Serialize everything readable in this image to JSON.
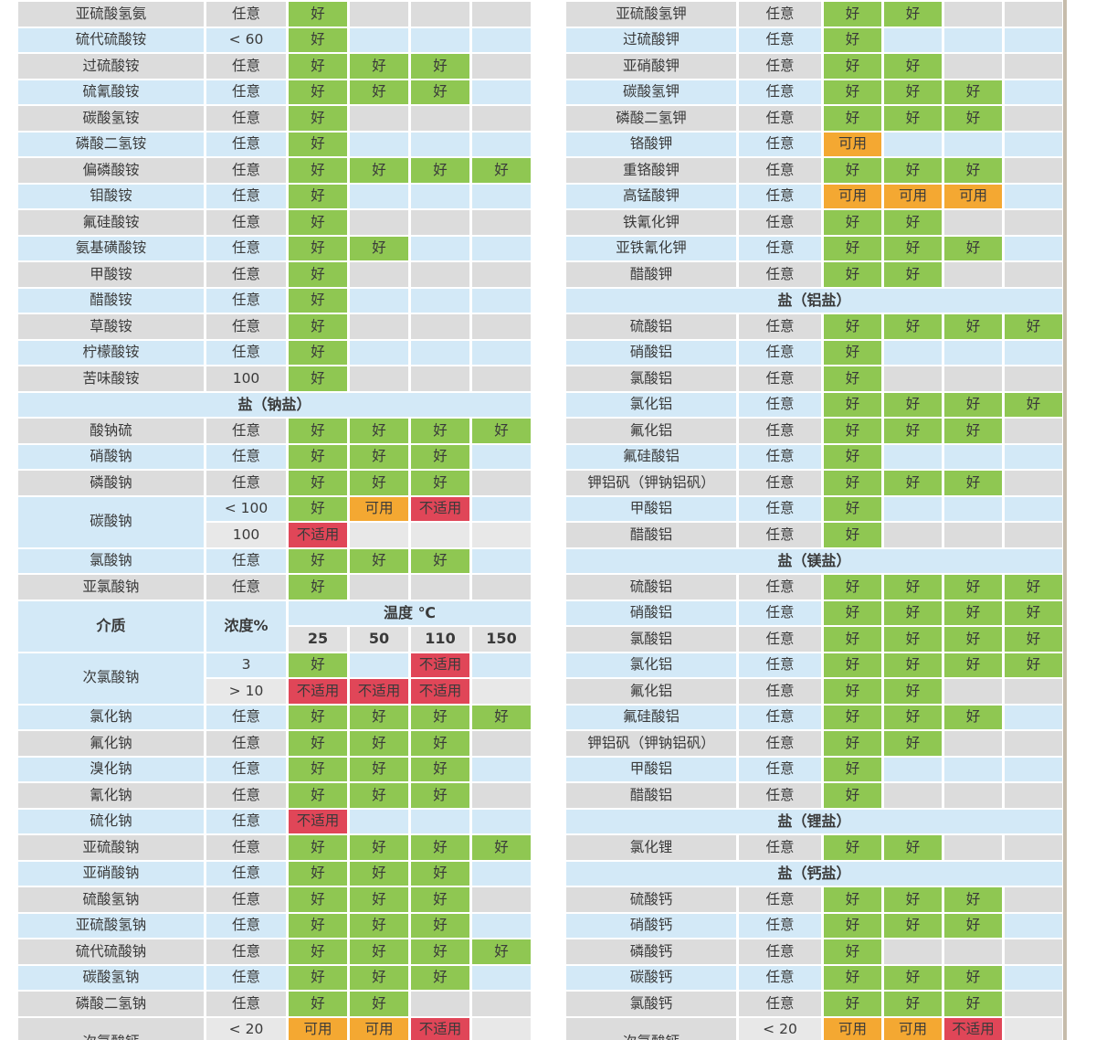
{
  "colors": {
    "good": "#8fc752",
    "usable": "#f4a832",
    "unsuitable": "#e04658",
    "row_gray": "#dcdcdc",
    "row_blue": "#d3e9f7",
    "row_light": "#e8e8e8",
    "header_num_bg": "#e0e0e0",
    "text": "#3a3a3a",
    "edge_line": "#c6bcab"
  },
  "status_labels": {
    "g": "好",
    "u": "可用",
    "x": "不适用"
  },
  "columns_header": {
    "medium": "介质",
    "concentration": "浓度%",
    "temperature": "温度 ℃",
    "temps": [
      "25",
      "50",
      "110",
      "150"
    ]
  },
  "tables": [
    {
      "id": "left",
      "rows": [
        {
          "t": "d",
          "s": "gray",
          "n": "亚硫酸氢氨",
          "c": "任意",
          "v": [
            "g",
            null,
            null,
            null
          ]
        },
        {
          "t": "d",
          "s": "blue",
          "n": "硫代硫酸铵",
          "c": "< 60",
          "v": [
            "g",
            null,
            null,
            null
          ]
        },
        {
          "t": "d",
          "s": "gray",
          "n": "过硫酸铵",
          "c": "任意",
          "v": [
            "g",
            "g",
            "g",
            null
          ]
        },
        {
          "t": "d",
          "s": "blue",
          "n": "硫氰酸铵",
          "c": "任意",
          "v": [
            "g",
            "g",
            "g",
            null
          ]
        },
        {
          "t": "d",
          "s": "gray",
          "n": "碳酸氢铵",
          "c": "任意",
          "v": [
            "g",
            null,
            null,
            null
          ]
        },
        {
          "t": "d",
          "s": "blue",
          "n": "磷酸二氢铵",
          "c": "任意",
          "v": [
            "g",
            null,
            null,
            null
          ]
        },
        {
          "t": "d",
          "s": "gray",
          "n": "偏磷酸铵",
          "c": "任意",
          "v": [
            "g",
            "g",
            "g",
            "g"
          ]
        },
        {
          "t": "d",
          "s": "blue",
          "n": "钼酸铵",
          "c": "任意",
          "v": [
            "g",
            null,
            null,
            null
          ]
        },
        {
          "t": "d",
          "s": "gray",
          "n": "氟硅酸铵",
          "c": "任意",
          "v": [
            "g",
            null,
            null,
            null
          ]
        },
        {
          "t": "d",
          "s": "blue",
          "n": "氨基磺酸铵",
          "c": "任意",
          "v": [
            "g",
            "g",
            null,
            null
          ]
        },
        {
          "t": "d",
          "s": "gray",
          "n": "甲酸铵",
          "c": "任意",
          "v": [
            "g",
            null,
            null,
            null
          ]
        },
        {
          "t": "d",
          "s": "blue",
          "n": "醋酸铵",
          "c": "任意",
          "v": [
            "g",
            null,
            null,
            null
          ]
        },
        {
          "t": "d",
          "s": "gray",
          "n": "草酸铵",
          "c": "任意",
          "v": [
            "g",
            null,
            null,
            null
          ]
        },
        {
          "t": "d",
          "s": "blue",
          "n": "柠檬酸铵",
          "c": "任意",
          "v": [
            "g",
            null,
            null,
            null
          ]
        },
        {
          "t": "d",
          "s": "gray",
          "n": "苦味酸铵",
          "c": "100",
          "v": [
            "g",
            null,
            null,
            null
          ]
        },
        {
          "t": "s",
          "label": "盐（钠盐）"
        },
        {
          "t": "d",
          "s": "gray",
          "n": "酸钠硫",
          "c": "任意",
          "v": [
            "g",
            "g",
            "g",
            "g"
          ]
        },
        {
          "t": "d",
          "s": "blue",
          "n": "硝酸钠",
          "c": "任意",
          "v": [
            "g",
            "g",
            "g",
            null
          ]
        },
        {
          "t": "d",
          "s": "gray",
          "n": "磷酸钠",
          "c": "任意",
          "v": [
            "g",
            "g",
            "g",
            null
          ]
        },
        {
          "t": "m",
          "s": "blue",
          "n": "碳酸钠",
          "sub": [
            {
              "s": "blue",
              "c": "< 100",
              "v": [
                "g",
                "u",
                "x",
                null
              ]
            },
            {
              "s": "light",
              "c": "100",
              "v": [
                "x",
                null,
                null,
                null
              ]
            }
          ]
        },
        {
          "t": "d",
          "s": "blue",
          "n": "氯酸钠",
          "c": "任意",
          "v": [
            "g",
            "g",
            "g",
            null
          ]
        },
        {
          "t": "d",
          "s": "gray",
          "n": "亚氯酸钠",
          "c": "任意",
          "v": [
            "g",
            null,
            null,
            null
          ]
        },
        {
          "t": "h"
        },
        {
          "t": "m",
          "s": "blue",
          "n": "次氯酸钠",
          "sub": [
            {
              "s": "blue",
              "c": "3",
              "v": [
                "g",
                null,
                "x",
                null
              ]
            },
            {
              "s": "light",
              "c": "> 10",
              "v": [
                "x",
                "x",
                "x",
                null
              ]
            }
          ]
        },
        {
          "t": "d",
          "s": "blue",
          "n": "氯化钠",
          "c": "任意",
          "v": [
            "g",
            "g",
            "g",
            "g"
          ]
        },
        {
          "t": "d",
          "s": "gray",
          "n": "氟化钠",
          "c": "任意",
          "v": [
            "g",
            "g",
            "g",
            null
          ]
        },
        {
          "t": "d",
          "s": "blue",
          "n": "溴化钠",
          "c": "任意",
          "v": [
            "g",
            "g",
            "g",
            null
          ]
        },
        {
          "t": "d",
          "s": "gray",
          "n": "氰化钠",
          "c": "任意",
          "v": [
            "g",
            "g",
            "g",
            null
          ]
        },
        {
          "t": "d",
          "s": "blue",
          "n": "硫化钠",
          "c": "任意",
          "v": [
            "x",
            null,
            null,
            null
          ]
        },
        {
          "t": "d",
          "s": "gray",
          "n": "亚硫酸钠",
          "c": "任意",
          "v": [
            "g",
            "g",
            "g",
            "g"
          ]
        },
        {
          "t": "d",
          "s": "blue",
          "n": "亚硝酸钠",
          "c": "任意",
          "v": [
            "g",
            "g",
            "g",
            null
          ]
        },
        {
          "t": "d",
          "s": "gray",
          "n": "硫酸氢钠",
          "c": "任意",
          "v": [
            "g",
            "g",
            "g",
            null
          ]
        },
        {
          "t": "d",
          "s": "blue",
          "n": "亚硫酸氢钠",
          "c": "任意",
          "v": [
            "g",
            "g",
            "g",
            null
          ]
        },
        {
          "t": "d",
          "s": "gray",
          "n": "硫代硫酸钠",
          "c": "任意",
          "v": [
            "g",
            "g",
            "g",
            "g"
          ]
        },
        {
          "t": "d",
          "s": "blue",
          "n": "碳酸氢钠",
          "c": "任意",
          "v": [
            "g",
            "g",
            "g",
            null
          ]
        },
        {
          "t": "d",
          "s": "gray",
          "n": "磷酸二氢钠",
          "c": "任意",
          "v": [
            "g",
            "g",
            null,
            null
          ]
        },
        {
          "t": "m",
          "s": "gray",
          "n": "次氯酸钙",
          "sub": [
            {
              "s": "light",
              "c": "< 20",
              "v": [
                "u",
                "u",
                "x",
                null
              ]
            },
            {
              "s": "light",
              "c": "",
              "v": [
                null,
                null,
                null,
                null
              ]
            }
          ]
        }
      ]
    },
    {
      "id": "right",
      "rows": [
        {
          "t": "d",
          "s": "gray",
          "n": "亚硫酸氢钾",
          "c": "任意",
          "v": [
            "g",
            "g",
            null,
            null
          ]
        },
        {
          "t": "d",
          "s": "blue",
          "n": "过硫酸钾",
          "c": "任意",
          "v": [
            "g",
            null,
            null,
            null
          ]
        },
        {
          "t": "d",
          "s": "gray",
          "n": "亚硝酸钾",
          "c": "任意",
          "v": [
            "g",
            "g",
            null,
            null
          ]
        },
        {
          "t": "d",
          "s": "blue",
          "n": "碳酸氢钾",
          "c": "任意",
          "v": [
            "g",
            "g",
            "g",
            null
          ]
        },
        {
          "t": "d",
          "s": "gray",
          "n": "磷酸二氢钾",
          "c": "任意",
          "v": [
            "g",
            "g",
            "g",
            null
          ]
        },
        {
          "t": "d",
          "s": "blue",
          "n": "铬酸钾",
          "c": "任意",
          "v": [
            "u",
            null,
            null,
            null
          ]
        },
        {
          "t": "d",
          "s": "gray",
          "n": "重铬酸钾",
          "c": "任意",
          "v": [
            "g",
            "g",
            "g",
            null
          ]
        },
        {
          "t": "d",
          "s": "blue",
          "n": "高锰酸钾",
          "c": "任意",
          "v": [
            "u",
            "u",
            "u",
            null
          ]
        },
        {
          "t": "d",
          "s": "gray",
          "n": "铁氰化钾",
          "c": "任意",
          "v": [
            "g",
            "g",
            null,
            null
          ]
        },
        {
          "t": "d",
          "s": "blue",
          "n": "亚铁氰化钾",
          "c": "任意",
          "v": [
            "g",
            "g",
            "g",
            null
          ]
        },
        {
          "t": "d",
          "s": "gray",
          "n": "醋酸钾",
          "c": "任意",
          "v": [
            "g",
            "g",
            null,
            null
          ]
        },
        {
          "t": "s",
          "label": "盐（铝盐）"
        },
        {
          "t": "d",
          "s": "gray",
          "n": "硫酸铝",
          "c": "任意",
          "v": [
            "g",
            "g",
            "g",
            "g"
          ]
        },
        {
          "t": "d",
          "s": "blue",
          "n": "硝酸铝",
          "c": "任意",
          "v": [
            "g",
            null,
            null,
            null
          ]
        },
        {
          "t": "d",
          "s": "gray",
          "n": "氯酸铝",
          "c": "任意",
          "v": [
            "g",
            null,
            null,
            null
          ]
        },
        {
          "t": "d",
          "s": "blue",
          "n": "氯化铝",
          "c": "任意",
          "v": [
            "g",
            "g",
            "g",
            "g"
          ]
        },
        {
          "t": "d",
          "s": "gray",
          "n": "氟化铝",
          "c": "任意",
          "v": [
            "g",
            "g",
            "g",
            null
          ]
        },
        {
          "t": "d",
          "s": "blue",
          "n": "氟硅酸铝",
          "c": "任意",
          "v": [
            "g",
            null,
            null,
            null
          ]
        },
        {
          "t": "d",
          "s": "gray",
          "n": "钾铝矾（钾钠铝矾）",
          "c": "任意",
          "v": [
            "g",
            "g",
            "g",
            null
          ]
        },
        {
          "t": "d",
          "s": "blue",
          "n": "甲酸铝",
          "c": "任意",
          "v": [
            "g",
            null,
            null,
            null
          ]
        },
        {
          "t": "d",
          "s": "gray",
          "n": "醋酸铝",
          "c": "任意",
          "v": [
            "g",
            null,
            null,
            null
          ]
        },
        {
          "t": "s",
          "label": "盐（镁盐）"
        },
        {
          "t": "d",
          "s": "gray",
          "n": "硫酸铝",
          "c": "任意",
          "v": [
            "g",
            "g",
            "g",
            "g"
          ]
        },
        {
          "t": "d",
          "s": "blue",
          "n": "硝酸铝",
          "c": "任意",
          "v": [
            "g",
            "g",
            "g",
            "g"
          ]
        },
        {
          "t": "d",
          "s": "gray",
          "n": "氯酸铝",
          "c": "任意",
          "v": [
            "g",
            "g",
            "g",
            "g"
          ]
        },
        {
          "t": "d",
          "s": "blue",
          "n": "氯化铝",
          "c": "任意",
          "v": [
            "g",
            "g",
            "g",
            "g"
          ]
        },
        {
          "t": "d",
          "s": "gray",
          "n": "氟化铝",
          "c": "任意",
          "v": [
            "g",
            "g",
            null,
            null
          ]
        },
        {
          "t": "d",
          "s": "blue",
          "n": "氟硅酸铝",
          "c": "任意",
          "v": [
            "g",
            "g",
            "g",
            null
          ]
        },
        {
          "t": "d",
          "s": "gray",
          "n": "钾铝矾（钾钠铝矾）",
          "c": "任意",
          "v": [
            "g",
            "g",
            null,
            null
          ]
        },
        {
          "t": "d",
          "s": "blue",
          "n": "甲酸铝",
          "c": "任意",
          "v": [
            "g",
            null,
            null,
            null
          ]
        },
        {
          "t": "d",
          "s": "gray",
          "n": "醋酸铝",
          "c": "任意",
          "v": [
            "g",
            null,
            null,
            null
          ]
        },
        {
          "t": "s",
          "label": "盐（锂盐）"
        },
        {
          "t": "d",
          "s": "gray",
          "n": "氯化锂",
          "c": "任意",
          "v": [
            "g",
            "g",
            null,
            null
          ]
        },
        {
          "t": "s",
          "label": "盐（钙盐）"
        },
        {
          "t": "d",
          "s": "gray",
          "n": "硫酸钙",
          "c": "任意",
          "v": [
            "g",
            "g",
            "g",
            null
          ]
        },
        {
          "t": "d",
          "s": "blue",
          "n": "硝酸钙",
          "c": "任意",
          "v": [
            "g",
            "g",
            "g",
            null
          ]
        },
        {
          "t": "d",
          "s": "gray",
          "n": "磷酸钙",
          "c": "任意",
          "v": [
            "g",
            null,
            null,
            null
          ]
        },
        {
          "t": "d",
          "s": "blue",
          "n": "碳酸钙",
          "c": "任意",
          "v": [
            "g",
            "g",
            "g",
            null
          ]
        },
        {
          "t": "d",
          "s": "gray",
          "n": "氯酸钙",
          "c": "任意",
          "v": [
            "g",
            "g",
            "g",
            null
          ]
        },
        {
          "t": "m",
          "s": "gray",
          "n": "次氯酸钙",
          "sub": [
            {
              "s": "light",
              "c": "< 20",
              "v": [
                "u",
                "u",
                "x",
                null
              ]
            },
            {
              "s": "light",
              "c": "",
              "v": [
                null,
                null,
                null,
                null
              ]
            }
          ]
        }
      ]
    }
  ]
}
